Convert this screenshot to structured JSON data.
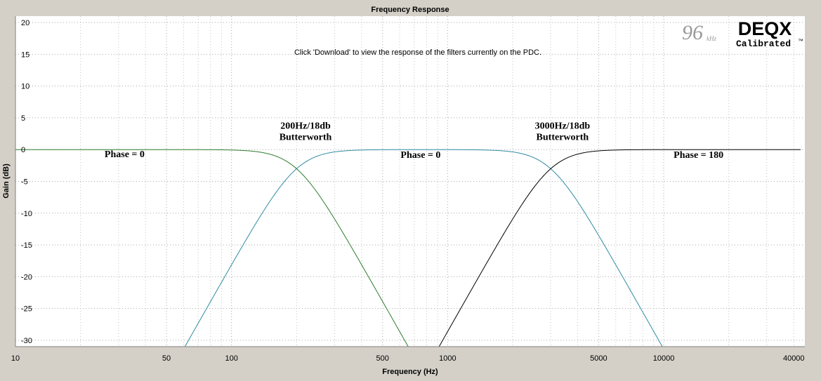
{
  "window": {
    "title": "Frequency Response"
  },
  "notice": "Click 'Download' to view the response of the filters currently on the PDC.",
  "branding": {
    "rate": "96",
    "rate_unit": "kHz",
    "product": "DEQX",
    "tagline": "Calibrated",
    "tm": "™"
  },
  "colors": {
    "background": "#d4d0c8",
    "plot_bg": "#ffffff",
    "low_pass": "#2e7d2e",
    "band_pass": "#2f8ca3",
    "high_pass": "#000000"
  },
  "chart_data": {
    "type": "line",
    "title": "Frequency Response",
    "xlabel": "Frequency (Hz)",
    "ylabel": "Gain (dB)",
    "xscale": "log",
    "xlim": [
      10,
      45000
    ],
    "ylim": [
      -31,
      21
    ],
    "grid": true,
    "xticks": [
      {
        "value": 10,
        "label": "10"
      },
      {
        "value": 50,
        "label": "50"
      },
      {
        "value": 100,
        "label": "100"
      },
      {
        "value": 500,
        "label": "500"
      },
      {
        "value": 1000,
        "label": "1000"
      },
      {
        "value": 5000,
        "label": "5000"
      },
      {
        "value": 10000,
        "label": "10000"
      },
      {
        "value": 40000,
        "label": "40000"
      }
    ],
    "yticks": [
      20,
      15,
      10,
      5,
      0,
      -5,
      -10,
      -15,
      -20,
      -25,
      -30
    ],
    "series": [
      {
        "type": "lowpass",
        "fc": 200,
        "order": 3,
        "color": "#2e7d2e",
        "fmin": 10,
        "fmax": 45000
      },
      {
        "type": "bandpass",
        "fl": 200,
        "fh": 3000,
        "order": 3,
        "color": "#2f8ca3",
        "fmin": 10,
        "fmax": 45000
      },
      {
        "type": "highpass",
        "fc": 3000,
        "order": 3,
        "color": "#000000",
        "fmin": 10,
        "fmax": 43000
      }
    ],
    "annotations": [
      {
        "lines": [
          "200Hz/18db",
          "Butterworth"
        ],
        "x": 220,
        "y": 3.3
      },
      {
        "lines": [
          "3000Hz/18db",
          "Butterworth"
        ],
        "x": 3400,
        "y": 3.3
      },
      {
        "lines": [
          "Phase = 0"
        ],
        "x": 32,
        "y": -1.2
      },
      {
        "lines": [
          "Phase = 0"
        ],
        "x": 750,
        "y": -1.3
      },
      {
        "lines": [
          "Phase = 180"
        ],
        "x": 14500,
        "y": -1.3
      }
    ]
  }
}
